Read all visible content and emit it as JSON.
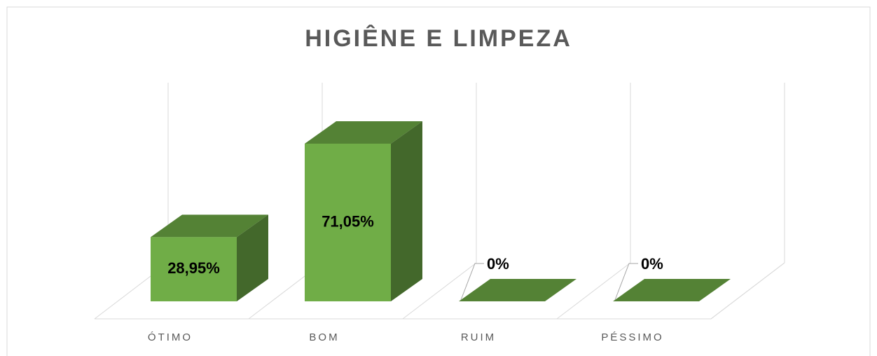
{
  "chart_data": {
    "type": "bar3d",
    "title": "HIGIÊNE E LIMPEZA",
    "categories": [
      "ÓTIMO",
      "BOM",
      "RUIM",
      "PÉSSIMO"
    ],
    "values": [
      28.95,
      71.05,
      0,
      0
    ],
    "value_labels": [
      "28,95%",
      "71,05%",
      "0%",
      "0%"
    ],
    "colors": {
      "front": "#70ad47",
      "top": "#548235",
      "side": "#43682b"
    },
    "grid": true
  }
}
